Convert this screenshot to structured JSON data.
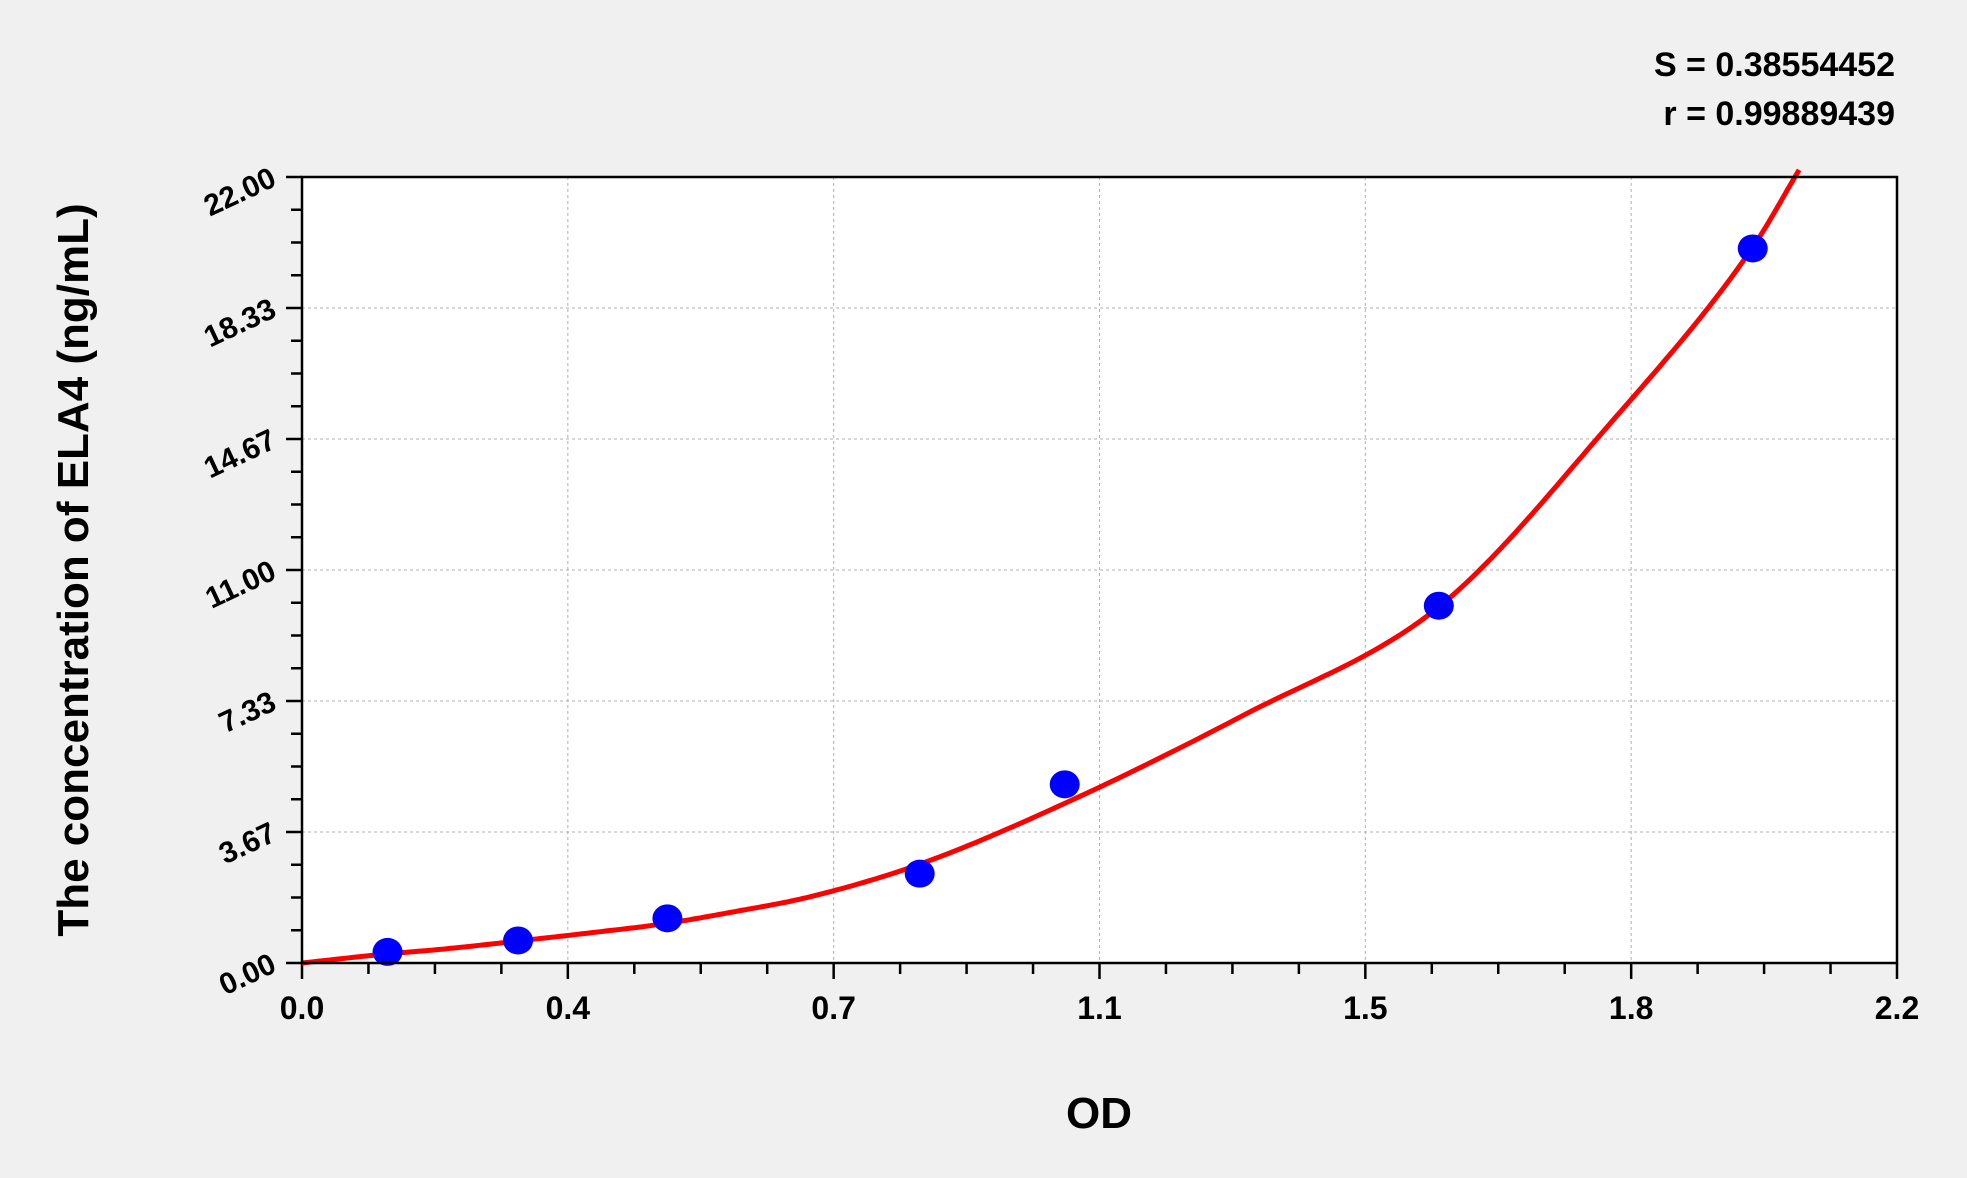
{
  "chart_data": {
    "type": "scatter",
    "title": "",
    "xlabel": "OD",
    "ylabel": "The concentration of ELA4 (ng/mL)",
    "xlim": [
      0,
      2.2
    ],
    "ylim": [
      0,
      22
    ],
    "x_tick_labels": [
      "0.0",
      "0.4",
      "0.7",
      "1.1",
      "1.5",
      "1.8",
      "2.2"
    ],
    "y_tick_labels": [
      "0.00",
      "3.67",
      "7.33",
      "11.00",
      "14.67",
      "18.33",
      "22.00"
    ],
    "grid": true,
    "annotations": [
      "S = 0.38554452",
      "r = 0.99889439"
    ],
    "points": {
      "x": [
        0.118,
        0.298,
        0.504,
        0.852,
        1.052,
        1.568,
        2.001
      ],
      "y": [
        0.31,
        0.63,
        1.25,
        2.5,
        5,
        10,
        20
      ],
      "color": "#0000ff"
    },
    "fit_curve": {
      "x": [
        0,
        0.1,
        0.2,
        0.3,
        0.4,
        0.5,
        0.6,
        0.7,
        0.85,
        1.05,
        1.3,
        1.57,
        1.8,
        2.0,
        2.065
      ],
      "y": [
        0,
        0.22,
        0.4,
        0.62,
        0.85,
        1.1,
        1.45,
        1.85,
        2.75,
        4.45,
        6.95,
        10.0,
        15.0,
        20.0,
        22.2
      ],
      "color": "#ff0000"
    }
  }
}
